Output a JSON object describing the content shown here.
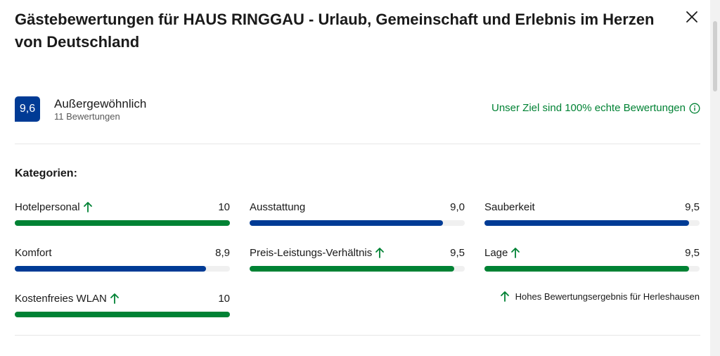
{
  "title": "Gästebewertungen für HAUS RINGGAU - Urlaub, Gemeinschaft und Erlebnis im Herzen von Deutschland",
  "summary": {
    "score": "9,6",
    "rating_word": "Außergewöhnlich",
    "review_count": "11 Bewertungen",
    "genuine_text": "Unser Ziel sind 100% echte Bewertungen"
  },
  "categories_heading": "Kategorien:",
  "categories": [
    {
      "label": "Hotelpersonal",
      "score": "10",
      "value": 10,
      "high": true
    },
    {
      "label": "Ausstattung",
      "score": "9,0",
      "value": 9.0,
      "high": false
    },
    {
      "label": "Sauberkeit",
      "score": "9,5",
      "value": 9.5,
      "high": false
    },
    {
      "label": "Komfort",
      "score": "8,9",
      "value": 8.9,
      "high": false
    },
    {
      "label": "Preis-Leistungs-Verhältnis",
      "score": "9,5",
      "value": 9.5,
      "high": true
    },
    {
      "label": "Lage",
      "score": "9,5",
      "value": 9.5,
      "high": true
    },
    {
      "label": "Kostenfreies WLAN",
      "score": "10",
      "value": 10,
      "high": true
    }
  ],
  "high_score_note": "Hohes Bewertungsergebnis für Herleshausen",
  "colors": {
    "brand_blue": "#003b95",
    "high_green": "#008234",
    "track": "#f0f0f0"
  },
  "icons": {
    "close": "close-icon",
    "info": "info-icon",
    "up_arrow": "arrow-up-icon"
  }
}
